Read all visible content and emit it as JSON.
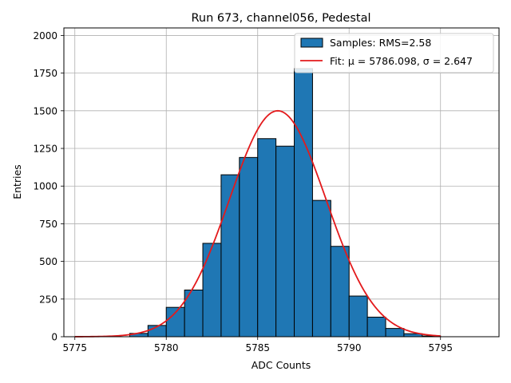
{
  "chart_data": {
    "type": "bar",
    "title": "Run 673, channel056, Pedestal",
    "xlabel": "ADC Counts",
    "ylabel": "Entries",
    "xlim": [
      5774.4,
      5798.2
    ],
    "ylim": [
      0,
      2050
    ],
    "x_ticks": [
      5775,
      5780,
      5785,
      5790,
      5795
    ],
    "y_ticks": [
      0,
      250,
      500,
      750,
      1000,
      1250,
      1500,
      1750,
      2000
    ],
    "grid": true,
    "legend_position": "top-right",
    "bin_width": 1,
    "bins": [
      {
        "left": 5778,
        "count": 22
      },
      {
        "left": 5779,
        "count": 75
      },
      {
        "left": 5780,
        "count": 195
      },
      {
        "left": 5781,
        "count": 310
      },
      {
        "left": 5782,
        "count": 620
      },
      {
        "left": 5783,
        "count": 1075
      },
      {
        "left": 5784,
        "count": 1190
      },
      {
        "left": 5785,
        "count": 1315
      },
      {
        "left": 5786,
        "count": 1265
      },
      {
        "left": 5787,
        "count": 1780
      },
      {
        "left": 5788,
        "count": 905
      },
      {
        "left": 5789,
        "count": 600
      },
      {
        "left": 5790,
        "count": 270
      },
      {
        "left": 5791,
        "count": 130
      },
      {
        "left": 5792,
        "count": 55
      },
      {
        "left": 5793,
        "count": 20
      },
      {
        "left": 5794,
        "count": 5
      }
    ],
    "fit": {
      "mu": 5786.098,
      "sigma": 2.647,
      "amplitude": 1500,
      "x_range": [
        5775,
        5795
      ]
    },
    "series": [
      {
        "name": "Samples: RMS=2.58",
        "kind": "histogram",
        "color": "#1f77b4"
      },
      {
        "name": "Fit: μ = 5786.098, σ = 2.647",
        "kind": "line",
        "color": "#e31a1c"
      }
    ]
  }
}
